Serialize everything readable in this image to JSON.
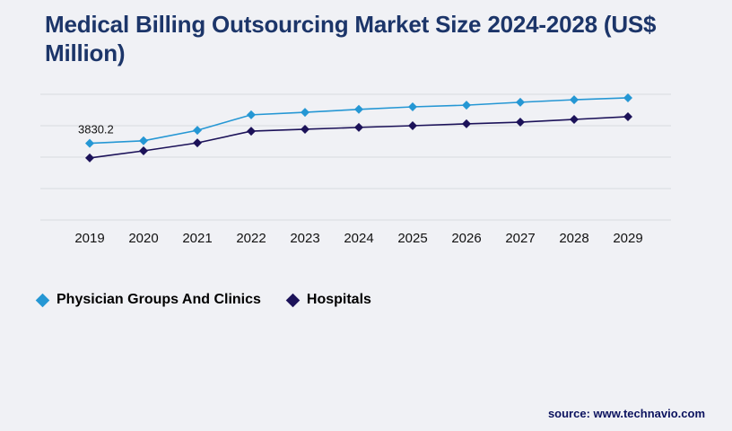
{
  "title": "Medical Billing Outsourcing Market Size 2024-2028 (US$ Million)",
  "source": "source: www.technavio.com",
  "legend": [
    {
      "label": "Physician Groups And Clinics",
      "color": "#2597d4"
    },
    {
      "label": "Hospitals",
      "color": "#1c1259"
    }
  ],
  "colors": {
    "background": "#f0f1f5",
    "title": "#1c3569",
    "gridline": "#d9dadf",
    "tick_label": "#111111",
    "annotation": "#111111",
    "source_text": "#0c135f"
  },
  "chart_data": {
    "type": "line",
    "title": "Medical Billing Outsourcing Market Size 2024-2028 (US$ Million)",
    "xlabel": "",
    "ylabel": "",
    "x": [
      2019,
      2020,
      2021,
      2022,
      2023,
      2024,
      2025,
      2026,
      2027,
      2028,
      2029
    ],
    "series": [
      {
        "name": "Physician Groups And Clinics",
        "color": "#2597d4",
        "values": [
          3830.2,
          3890,
          4140,
          4510,
          4570,
          4640,
          4700,
          4740,
          4810,
          4870,
          4915
        ]
      },
      {
        "name": "Hospitals",
        "color": "#1c1259",
        "values": [
          3480,
          3650,
          3840,
          4120,
          4165,
          4210,
          4250,
          4295,
          4335,
          4400,
          4465
        ]
      }
    ],
    "annotations": [
      {
        "text": "3830.2",
        "series": 0,
        "index": 0
      }
    ],
    "ylim": [
      2000,
      5000
    ],
    "grid": true,
    "gridline_count": 5,
    "marker": "diamond",
    "legend_position": "bottom"
  }
}
